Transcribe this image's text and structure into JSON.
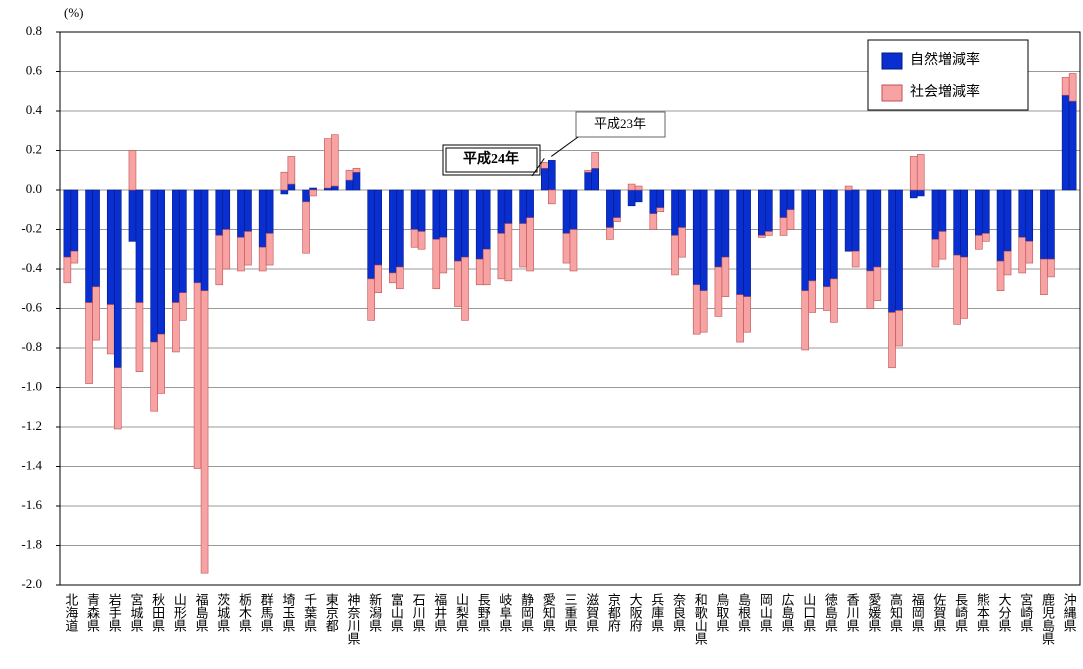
{
  "chart_data": {
    "type": "bar",
    "y_unit": "(%)",
    "bar_labels": [
      "平成24年",
      "平成23年"
    ],
    "categories": [
      "北海道",
      "青森県",
      "岩手県",
      "宮城県",
      "秋田県",
      "山形県",
      "福島県",
      "茨城県",
      "栃木県",
      "群馬県",
      "埼玉県",
      "千葉県",
      "東京都",
      "神奈川県",
      "新潟県",
      "富山県",
      "石川県",
      "福井県",
      "山梨県",
      "長野県",
      "岐阜県",
      "静岡県",
      "愛知県",
      "三重県",
      "滋賀県",
      "京都府",
      "大阪府",
      "兵庫県",
      "奈良県",
      "和歌山県",
      "鳥取県",
      "島根県",
      "岡山県",
      "広島県",
      "山口県",
      "徳島県",
      "香川県",
      "愛媛県",
      "高知県",
      "福岡県",
      "佐賀県",
      "長崎県",
      "熊本県",
      "大分県",
      "宮崎県",
      "鹿児島県",
      "沖縄県"
    ],
    "series": [
      {
        "name": "自然増減率",
        "color": "#0a2fd0",
        "values": [
          [
            -0.34,
            -0.31
          ],
          [
            -0.57,
            -0.49
          ],
          [
            -0.58,
            -0.9
          ],
          [
            -0.26,
            -0.57
          ],
          [
            -0.77,
            -0.73
          ],
          [
            -0.57,
            -0.52
          ],
          [
            -0.47,
            -0.51
          ],
          [
            -0.23,
            -0.2
          ],
          [
            -0.24,
            -0.21
          ],
          [
            -0.29,
            -0.22
          ],
          [
            -0.02,
            0.03
          ],
          [
            -0.06,
            0.01
          ],
          [
            0.01,
            0.02
          ],
          [
            0.05,
            0.09
          ],
          [
            -0.45,
            -0.38
          ],
          [
            -0.42,
            -0.39
          ],
          [
            -0.2,
            -0.21
          ],
          [
            -0.25,
            -0.24
          ],
          [
            -0.36,
            -0.34
          ],
          [
            -0.35,
            -0.3
          ],
          [
            -0.22,
            -0.17
          ],
          [
            -0.17,
            -0.14
          ],
          [
            0.11,
            0.15
          ],
          [
            -0.22,
            -0.2
          ],
          [
            0.09,
            0.11
          ],
          [
            -0.19,
            -0.14
          ],
          [
            -0.08,
            -0.06
          ],
          [
            -0.12,
            -0.09
          ],
          [
            -0.23,
            -0.19
          ],
          [
            -0.48,
            -0.51
          ],
          [
            -0.39,
            -0.34
          ],
          [
            -0.53,
            -0.54
          ],
          [
            -0.23,
            -0.21
          ],
          [
            -0.14,
            -0.1
          ],
          [
            -0.51,
            -0.46
          ],
          [
            -0.49,
            -0.45
          ],
          [
            -0.31,
            -0.31
          ],
          [
            -0.41,
            -0.39
          ],
          [
            -0.62,
            -0.61
          ],
          [
            -0.04,
            -0.03
          ],
          [
            -0.25,
            -0.21
          ],
          [
            -0.33,
            -0.34
          ],
          [
            -0.23,
            -0.22
          ],
          [
            -0.36,
            -0.31
          ],
          [
            -0.24,
            -0.26
          ],
          [
            -0.35,
            -0.35
          ],
          [
            0.48,
            0.45
          ]
        ]
      },
      {
        "name": "社会増減率",
        "color": "#f7a3a3",
        "values": [
          [
            -0.13,
            -0.06
          ],
          [
            -0.41,
            -0.27
          ],
          [
            -0.25,
            -0.31
          ],
          [
            0.2,
            -0.35
          ],
          [
            -0.35,
            -0.3
          ],
          [
            -0.25,
            -0.14
          ],
          [
            -0.94,
            -1.43
          ],
          [
            -0.25,
            -0.2
          ],
          [
            -0.17,
            -0.17
          ],
          [
            -0.12,
            -0.16
          ],
          [
            0.09,
            0.14
          ],
          [
            -0.26,
            -0.03
          ],
          [
            0.25,
            0.26
          ],
          [
            0.05,
            0.02
          ],
          [
            -0.21,
            -0.14
          ],
          [
            -0.05,
            -0.11
          ],
          [
            -0.09,
            -0.09
          ],
          [
            -0.25,
            -0.18
          ],
          [
            -0.23,
            -0.32
          ],
          [
            -0.13,
            -0.18
          ],
          [
            -0.23,
            -0.29
          ],
          [
            -0.22,
            -0.27
          ],
          [
            0.03,
            -0.07
          ],
          [
            -0.15,
            -0.21
          ],
          [
            0.01,
            0.08
          ],
          [
            -0.06,
            -0.02
          ],
          [
            0.03,
            0.02
          ],
          [
            -0.08,
            -0.02
          ],
          [
            -0.2,
            -0.15
          ],
          [
            -0.25,
            -0.21
          ],
          [
            -0.25,
            -0.2
          ],
          [
            -0.24,
            -0.18
          ],
          [
            -0.01,
            -0.02
          ],
          [
            -0.09,
            -0.1
          ],
          [
            -0.3,
            -0.16
          ],
          [
            -0.12,
            -0.22
          ],
          [
            0.02,
            -0.08
          ],
          [
            -0.19,
            -0.17
          ],
          [
            -0.28,
            -0.18
          ],
          [
            0.17,
            0.18
          ],
          [
            -0.14,
            -0.14
          ],
          [
            -0.35,
            -0.31
          ],
          [
            -0.07,
            -0.04
          ],
          [
            -0.15,
            -0.12
          ],
          [
            -0.18,
            -0.11
          ],
          [
            -0.18,
            -0.09
          ],
          [
            0.09,
            0.14
          ]
        ]
      }
    ],
    "ylim": [
      -2.0,
      0.8
    ],
    "yticks": [
      0.8,
      0.6,
      0.4,
      0.2,
      {
        "value": 0,
        "label": "0.0"
      },
      -0.2,
      -0.4,
      -0.6,
      -0.8,
      {
        "value": -1,
        "label": "-1.0"
      },
      -1.2,
      -1.4,
      -1.6,
      -1.8,
      {
        "value": -2,
        "label": "-2.0"
      }
    ],
    "grid": true
  }
}
